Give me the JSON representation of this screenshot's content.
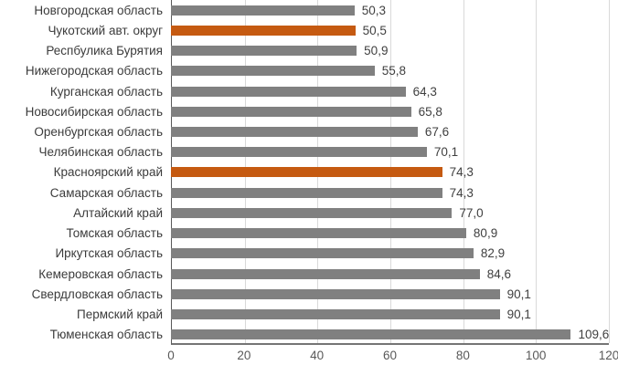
{
  "chart_data": {
    "type": "bar",
    "orientation": "horizontal",
    "xlim": [
      0,
      120
    ],
    "x_ticks": [
      0,
      20,
      40,
      60,
      80,
      100,
      120
    ],
    "grid": true,
    "legend_position": "none",
    "bar_color": "#808080",
    "highlight_color": "#C55A11",
    "highlighted_indices": [
      1,
      8
    ],
    "categories": [
      "Новгородская область",
      "Чукотский авт. округ",
      "Респбулика Бурятия",
      "Нижегородская область",
      "Курганская область",
      "Новосибирская область",
      "Оренбургская область",
      "Челябинская область",
      "Красноярский край",
      "Самарская область",
      "Алтайский край",
      "Томская область",
      "Иркутская область",
      "Кемеровская область",
      "Свердловская область",
      "Пермский край",
      "Тюменская область"
    ],
    "values": [
      50.3,
      50.5,
      50.9,
      55.8,
      64.3,
      65.8,
      67.6,
      70.1,
      74.3,
      74.3,
      77.0,
      80.9,
      82.9,
      84.6,
      90.1,
      90.1,
      109.6
    ],
    "value_labels": [
      "50,3",
      "50,5",
      "50,9",
      "55,8",
      "64,3",
      "65,8",
      "67,6",
      "70,1",
      "74,3",
      "74,3",
      "77,0",
      "80,9",
      "82,9",
      "84,6",
      "90,1",
      "90,1",
      "109,6"
    ]
  },
  "colors": {
    "gridline": "#d9d9d9",
    "axis_line": "#595959",
    "category_text": "#3b3b3b",
    "value_text": "#404040",
    "tick_text": "#595959"
  }
}
